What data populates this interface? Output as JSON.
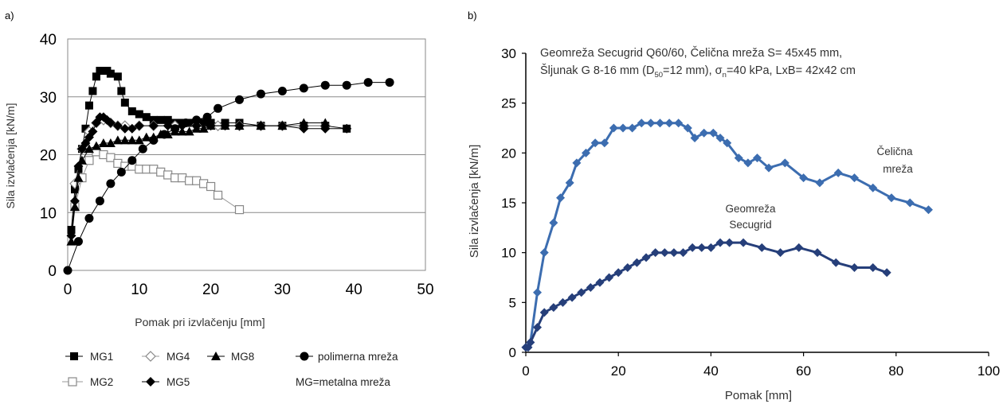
{
  "chart_data": [
    {
      "panel": "a)",
      "type": "line",
      "xlabel": "Pomak pri izvlačenju [mm]",
      "ylabel": "Sila izvlačenja [kN/m]",
      "xlim": [
        0,
        50
      ],
      "ylim": [
        0,
        40
      ],
      "xticks": [
        "0",
        "10",
        "20",
        "30",
        "40",
        "50"
      ],
      "yticks": [
        "0",
        "10",
        "20",
        "30",
        "40"
      ],
      "grid": "horizontal",
      "legend_position": "below",
      "legend_note": "MG=metalna mreža",
      "series": [
        {
          "name": "MG1",
          "marker": "square-filled",
          "x": [
            0.5,
            1,
            1.5,
            2,
            2.5,
            3,
            3.5,
            4,
            4.5,
            5,
            5.5,
            6,
            7,
            7.5,
            8,
            9,
            10,
            11,
            12,
            13,
            14,
            15,
            16,
            17,
            18,
            19,
            20,
            22,
            24,
            27,
            30,
            33,
            36,
            39
          ],
          "y": [
            7,
            14,
            17.5,
            21,
            24.5,
            28.5,
            31,
            33.5,
            34.5,
            34.5,
            34.5,
            34,
            33.5,
            31,
            29,
            27.5,
            27,
            26.5,
            26,
            26,
            26,
            25.5,
            25.5,
            25.5,
            25.5,
            25.5,
            25.5,
            25.5,
            25.5,
            25,
            25,
            25,
            25,
            24.5
          ]
        },
        {
          "name": "MG2",
          "marker": "square-open",
          "x": [
            1,
            2,
            3,
            4,
            5,
            6,
            7,
            8,
            9,
            10,
            11,
            12,
            13,
            14,
            15,
            16,
            17,
            18,
            19,
            20,
            21,
            24
          ],
          "y": [
            11,
            16,
            19,
            20.5,
            20,
            19.5,
            18.5,
            18,
            18,
            17.5,
            17.5,
            17.5,
            17,
            16.5,
            16,
            16,
            15.5,
            15.5,
            15,
            14.5,
            13,
            10.5
          ]
        },
        {
          "name": "MG4",
          "marker": "diamond-open",
          "x": [
            1,
            2,
            3,
            4,
            5,
            6,
            7,
            8,
            10,
            12,
            15,
            18,
            21,
            24,
            27,
            30,
            33,
            36
          ],
          "y": [
            15,
            21,
            24,
            25.5,
            26,
            25.5,
            25,
            25,
            25,
            25,
            25,
            25,
            25,
            25,
            25,
            25,
            25,
            25
          ]
        },
        {
          "name": "MG5",
          "marker": "diamond-filled",
          "x": [
            0.5,
            1,
            1.5,
            2,
            2.5,
            3,
            3.5,
            4,
            4.5,
            5,
            5.5,
            6,
            7,
            8,
            9,
            10,
            12,
            14,
            16,
            18,
            20,
            22,
            24,
            27,
            30,
            33,
            36,
            39
          ],
          "y": [
            6,
            12,
            18,
            21,
            22,
            23,
            24,
            25.5,
            26.5,
            26.5,
            26,
            25.5,
            25,
            24.5,
            24.5,
            25,
            25,
            25,
            25,
            25,
            25,
            25,
            25,
            25,
            25,
            24.5,
            24.5,
            24.5
          ]
        },
        {
          "name": "MG8",
          "marker": "triangle-filled",
          "x": [
            0.5,
            1,
            1.5,
            2,
            3,
            4,
            5,
            6,
            7,
            8,
            9,
            10,
            11,
            12,
            13,
            14,
            15,
            16,
            17,
            18,
            19,
            20,
            22,
            24,
            27,
            30,
            33,
            36
          ],
          "y": [
            5,
            11,
            16,
            19,
            21,
            21.5,
            22,
            22,
            22.5,
            22.5,
            22.5,
            22.5,
            23,
            23,
            23.5,
            23.5,
            24,
            24,
            24,
            24.5,
            24.5,
            25,
            25,
            25,
            25,
            25,
            25.5,
            25.5
          ]
        },
        {
          "name": "polimerna mreža",
          "marker": "circle-filled",
          "x": [
            0,
            1.5,
            3,
            4.5,
            6,
            7.5,
            9,
            10.5,
            12,
            13.5,
            15,
            16.5,
            18,
            19.5,
            21,
            24,
            27,
            30,
            33,
            36,
            39,
            42,
            45
          ],
          "y": [
            0,
            5,
            9,
            12,
            15,
            17,
            19,
            21,
            22.5,
            23.5,
            24.5,
            25.5,
            26,
            26.5,
            28,
            29.5,
            30.5,
            31,
            31.5,
            32,
            32,
            32.5,
            32.5
          ]
        }
      ]
    },
    {
      "panel": "b)",
      "type": "line",
      "xlabel": "Pomak [mm]",
      "ylabel": "Sila izvlačenja [kN/m]",
      "xlim": [
        0,
        100
      ],
      "ylim": [
        0,
        30
      ],
      "xticks": [
        "0",
        "20",
        "40",
        "60",
        "80",
        "100"
      ],
      "yticks": [
        "0",
        "5",
        "10",
        "15",
        "20",
        "25",
        "30"
      ],
      "grid": "off",
      "note_line1": "Geomreža Secugrid Q60/60, Čelična mreža S= 45x45 mm,",
      "note_line2_a": "Šljunak G 8-16 mm (D",
      "note_line2_sub1": "50",
      "note_line2_b": "=12 mm), σ",
      "note_line2_sub2": "n",
      "note_line2_c": "=40 kPa, LxB= 42x42 cm",
      "series": [
        {
          "name": "Čelična mreža",
          "label_lines": [
            "Čelična",
            "mreža"
          ],
          "color": "#3c6db0",
          "marker": "diamond",
          "x": [
            0,
            0.5,
            1,
            2.5,
            4,
            6,
            7.5,
            9.5,
            11,
            13,
            15,
            17,
            19,
            21,
            23,
            25,
            27,
            29,
            31,
            33,
            35,
            36.5,
            38.5,
            40.5,
            42,
            43.5,
            46,
            48,
            50,
            52.5,
            56,
            60,
            63.5,
            67.5,
            71,
            75,
            79,
            83,
            87
          ],
          "y": [
            0.5,
            0.5,
            1,
            6,
            10,
            13,
            15.5,
            17,
            19,
            20,
            21,
            21,
            22.5,
            22.5,
            22.5,
            23,
            23,
            23,
            23,
            23,
            22.5,
            21.5,
            22,
            22,
            21.5,
            21,
            19.5,
            19,
            19.5,
            18.5,
            19,
            17.5,
            17,
            18,
            17.5,
            16.5,
            15.5,
            15,
            14.3
          ]
        },
        {
          "name": "Geomreža Secugrid",
          "label_lines": [
            "Geomreža",
            "Secugrid"
          ],
          "color": "#263f7a",
          "marker": "diamond",
          "x": [
            0,
            0.5,
            1,
            2.5,
            4,
            6,
            8,
            10,
            12,
            14,
            16,
            18,
            20,
            22,
            24,
            26,
            28,
            30,
            32,
            34,
            36,
            38,
            40,
            42,
            44,
            47,
            51,
            55,
            59,
            63,
            67,
            71,
            75,
            78
          ],
          "y": [
            0.5,
            0.5,
            1,
            2.5,
            4,
            4.5,
            5,
            5.5,
            6,
            6.5,
            7,
            7.5,
            8,
            8.5,
            9,
            9.5,
            10,
            10,
            10,
            10,
            10.5,
            10.5,
            10.5,
            11,
            11,
            11,
            10.5,
            10,
            10.5,
            10,
            9,
            8.5,
            8.5,
            8
          ]
        }
      ]
    }
  ]
}
